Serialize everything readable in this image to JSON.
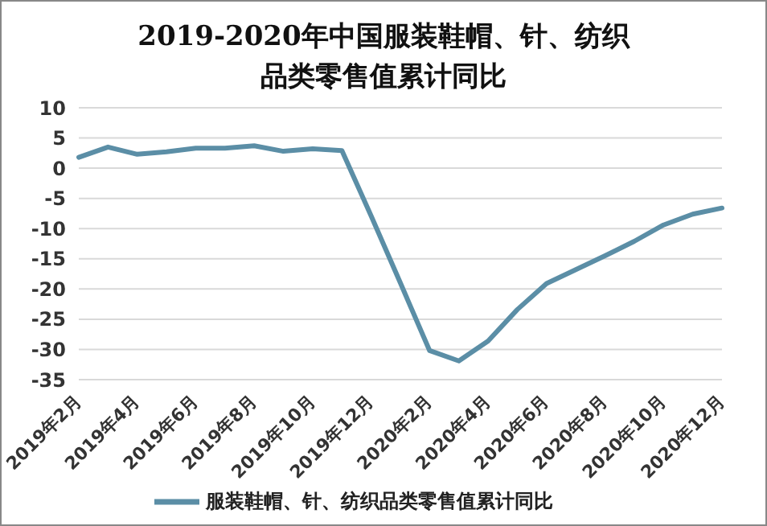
{
  "chart_data": {
    "type": "line",
    "title": "2019-2020年中国服装鞋帽、针、纺织品类零售值累计同比",
    "categories": [
      "2019年2月",
      null,
      "2019年4月",
      null,
      "2019年6月",
      null,
      "2019年8月",
      null,
      "2019年10月",
      null,
      "2019年12月",
      null,
      "2020年2月",
      null,
      "2020年4月",
      null,
      "2020年6月",
      null,
      "2020年8月",
      null,
      "2020年10月",
      null,
      "2020年12月"
    ],
    "series": [
      {
        "name": "服装鞋帽、针、纺织品类零售值累计同比",
        "color": "#5b8ea6",
        "values": [
          1.8,
          3.5,
          2.3,
          2.7,
          3.3,
          3.3,
          3.7,
          2.8,
          3.2,
          2.9,
          -7.9,
          -19,
          -30.2,
          -31.9,
          -28.6,
          -23.4,
          -19.1,
          -16.8,
          -14.5,
          -12.1,
          -9.4,
          -7.6,
          -6.6
        ]
      }
    ],
    "ylim": [
      -35,
      10
    ],
    "yticks": [
      -35,
      -30,
      -25,
      -20,
      -15,
      -10,
      -5,
      0,
      5,
      10
    ],
    "grid": "y",
    "legend": "bottom",
    "marker": "none",
    "line_style": "solid"
  }
}
